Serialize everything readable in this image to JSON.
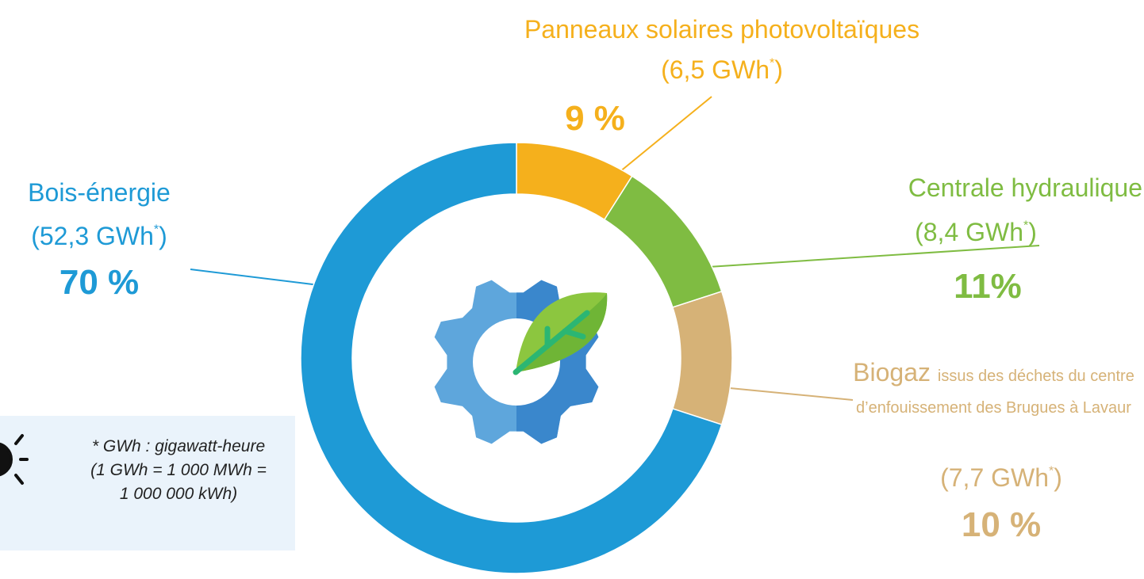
{
  "chart_data": {
    "type": "pie",
    "donut": true,
    "categories": [
      "Panneaux solaires photovoltaïques",
      "Centrale hydraulique",
      "Biogaz",
      "Bois-énergie"
    ],
    "energy_labels": [
      "(6,5 GWh*)",
      "(8,4 GWh*)",
      "(7,7 GWh*)",
      "(52,3 GWh*)"
    ],
    "values": [
      9,
      11,
      10,
      70
    ],
    "value_labels": [
      "9 %",
      "11%",
      "10 %",
      "70 %"
    ],
    "colors": [
      "#f5b01c",
      "#7fbc42",
      "#d6b277",
      "#1e9ad6"
    ],
    "annotations": [
      "issus des déchets du centre d’enfouissement des Brugues à Lavaur"
    ],
    "footnote": [
      "* GWh : gigawatt-heure",
      "(1 GWh  = 1 000 MWh =",
      "1 000 000 kWh)"
    ]
  }
}
